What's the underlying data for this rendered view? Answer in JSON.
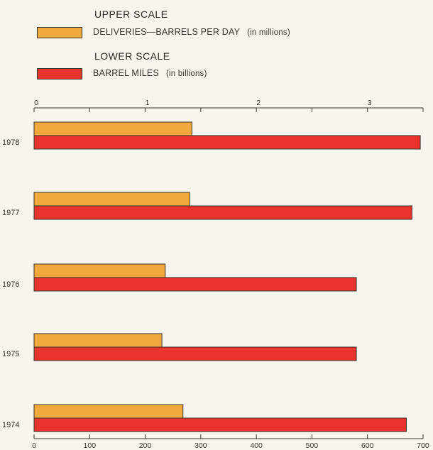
{
  "legend": {
    "upper_heading": "UPPER SCALE",
    "upper_label": "DELIVERIES—BARRELS PER DAY",
    "upper_unit": "(in millions)",
    "lower_heading": "LOWER SCALE",
    "lower_label": "BARREL MILES",
    "lower_unit": "(in billions)"
  },
  "colors": {
    "upper": "#f2a93b",
    "lower": "#e8342c",
    "outline": "#3a3530",
    "background": "#f7f5ee"
  },
  "chart_data": {
    "type": "bar",
    "orientation": "horizontal",
    "categories": [
      "1978",
      "1977",
      "1976",
      "1975",
      "1974"
    ],
    "series": [
      {
        "name": "DELIVERIES—BARRELS PER DAY",
        "scale": "upper",
        "values": [
          1.42,
          1.4,
          1.18,
          1.15,
          1.34
        ]
      },
      {
        "name": "BARREL MILES",
        "scale": "lower",
        "values": [
          695,
          680,
          580,
          580,
          670
        ]
      }
    ],
    "upper_axis": {
      "ticks": [
        0,
        0.5,
        1,
        1.5,
        2,
        2.5,
        3,
        3.5
      ],
      "tick_labels": [
        "0",
        "",
        "1",
        "",
        "2",
        "",
        "3",
        ""
      ],
      "xlim": [
        0,
        3.5
      ]
    },
    "lower_axis": {
      "ticks": [
        0,
        100,
        200,
        300,
        400,
        500,
        600,
        700
      ],
      "tick_labels": [
        "0",
        "100",
        "200",
        "300",
        "400",
        "500",
        "600",
        "700"
      ],
      "xlim": [
        0,
        700
      ]
    },
    "grid": false,
    "legend_position": "top-left"
  }
}
